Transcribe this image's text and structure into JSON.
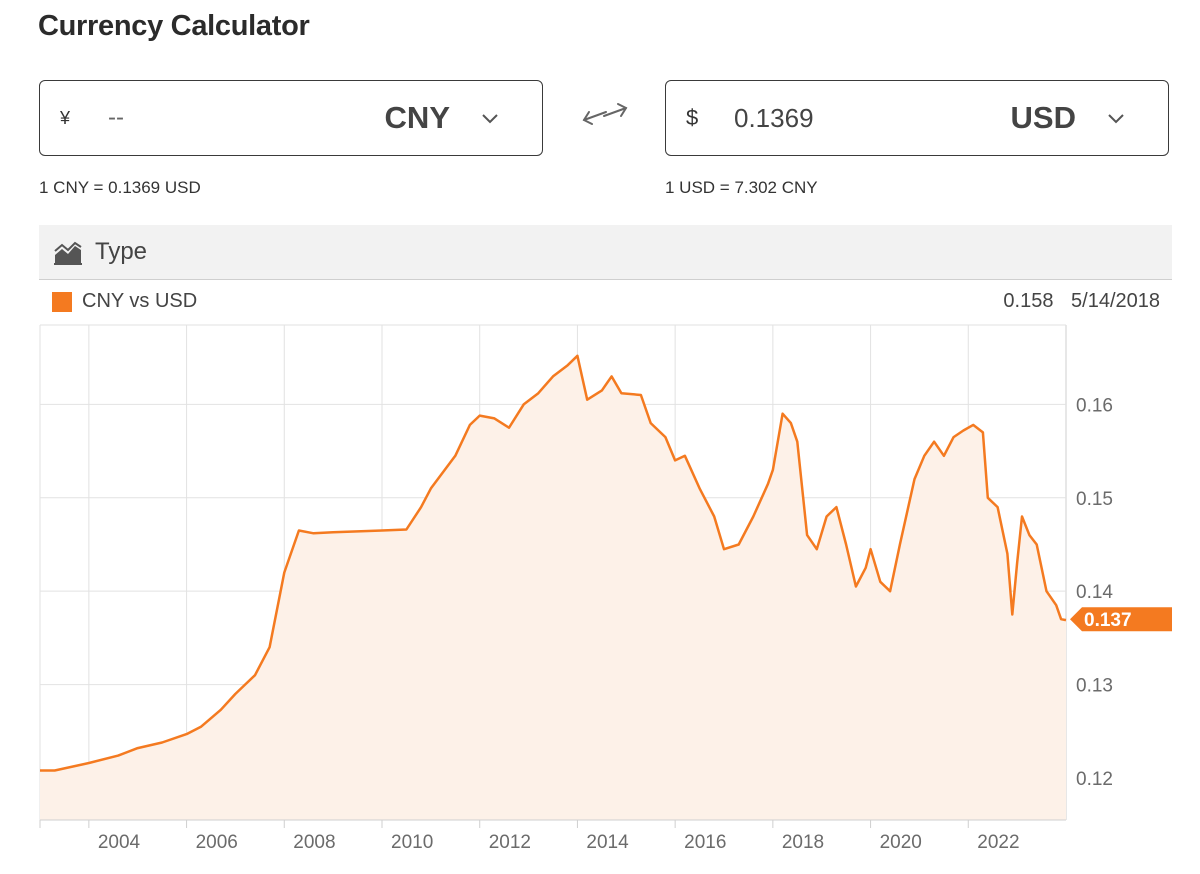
{
  "header": {
    "title": "Currency Calculator"
  },
  "converter": {
    "from": {
      "symbol": "¥",
      "value": "--",
      "currency": "CNY"
    },
    "to": {
      "symbol": "$",
      "value": "0.1369",
      "currency": "USD"
    },
    "rate_from": "1 CNY = 0.1369 USD",
    "rate_to": "1 USD = 7.302 CNY"
  },
  "toolbar": {
    "type_label": "Type"
  },
  "colors": {
    "accent": "#f47a20",
    "fill": "#fdf1e8",
    "grid": "#e2e2e2"
  },
  "icons": {
    "swap": "swap-arrows-icon",
    "chevron": "chevron-down-icon",
    "type": "area-chart-icon"
  },
  "chart_data": {
    "type": "area",
    "series": [
      {
        "name": "CNY vs USD",
        "points": [
          [
            2003.0,
            0.1208
          ],
          [
            2003.3,
            0.1208
          ],
          [
            2004.0,
            0.1216
          ],
          [
            2004.6,
            0.1224
          ],
          [
            2005.0,
            0.1232
          ],
          [
            2005.5,
            0.1238
          ],
          [
            2006.0,
            0.1247
          ],
          [
            2006.3,
            0.1255
          ],
          [
            2006.7,
            0.1273
          ],
          [
            2007.0,
            0.129
          ],
          [
            2007.4,
            0.131
          ],
          [
            2007.7,
            0.134
          ],
          [
            2008.0,
            0.142
          ],
          [
            2008.3,
            0.1465
          ],
          [
            2008.6,
            0.1462
          ],
          [
            2009.0,
            0.1463
          ],
          [
            2009.5,
            0.1464
          ],
          [
            2010.0,
            0.1465
          ],
          [
            2010.5,
            0.1466
          ],
          [
            2010.8,
            0.149
          ],
          [
            2011.0,
            0.151
          ],
          [
            2011.5,
            0.1545
          ],
          [
            2011.8,
            0.1578
          ],
          [
            2012.0,
            0.1588
          ],
          [
            2012.3,
            0.1585
          ],
          [
            2012.6,
            0.1575
          ],
          [
            2012.9,
            0.16
          ],
          [
            2013.2,
            0.1612
          ],
          [
            2013.5,
            0.163
          ],
          [
            2013.8,
            0.1642
          ],
          [
            2014.0,
            0.1652
          ],
          [
            2014.2,
            0.1605
          ],
          [
            2014.5,
            0.1615
          ],
          [
            2014.7,
            0.163
          ],
          [
            2014.9,
            0.1612
          ],
          [
            2015.3,
            0.161
          ],
          [
            2015.5,
            0.158
          ],
          [
            2015.8,
            0.1565
          ],
          [
            2016.0,
            0.154
          ],
          [
            2016.2,
            0.1545
          ],
          [
            2016.5,
            0.151
          ],
          [
            2016.8,
            0.148
          ],
          [
            2017.0,
            0.1445
          ],
          [
            2017.3,
            0.145
          ],
          [
            2017.6,
            0.148
          ],
          [
            2017.9,
            0.1515
          ],
          [
            2018.0,
            0.153
          ],
          [
            2018.2,
            0.159
          ],
          [
            2018.37,
            0.158
          ],
          [
            2018.5,
            0.156
          ],
          [
            2018.7,
            0.146
          ],
          [
            2018.9,
            0.1445
          ],
          [
            2019.1,
            0.148
          ],
          [
            2019.3,
            0.149
          ],
          [
            2019.5,
            0.145
          ],
          [
            2019.7,
            0.1405
          ],
          [
            2019.9,
            0.1425
          ],
          [
            2020.0,
            0.1445
          ],
          [
            2020.2,
            0.141
          ],
          [
            2020.4,
            0.14
          ],
          [
            2020.6,
            0.145
          ],
          [
            2020.9,
            0.152
          ],
          [
            2021.1,
            0.1545
          ],
          [
            2021.3,
            0.156
          ],
          [
            2021.5,
            0.1545
          ],
          [
            2021.7,
            0.1565
          ],
          [
            2021.9,
            0.1572
          ],
          [
            2022.1,
            0.1578
          ],
          [
            2022.3,
            0.157
          ],
          [
            2022.4,
            0.15
          ],
          [
            2022.6,
            0.149
          ],
          [
            2022.8,
            0.144
          ],
          [
            2022.9,
            0.1375
          ],
          [
            2023.0,
            0.143
          ],
          [
            2023.1,
            0.148
          ],
          [
            2023.25,
            0.146
          ],
          [
            2023.4,
            0.145
          ],
          [
            2023.6,
            0.14
          ],
          [
            2023.8,
            0.1385
          ],
          [
            2023.9,
            0.137
          ],
          [
            2024.0,
            0.1369
          ]
        ]
      }
    ],
    "x_ticks": [
      "2004",
      "2006",
      "2008",
      "2010",
      "2012",
      "2014",
      "2016",
      "2018",
      "2020",
      "2022"
    ],
    "y_ticks": [
      "0.12",
      "0.13",
      "0.14",
      "0.15",
      "0.16"
    ],
    "xlim": [
      2003.0,
      2024.0
    ],
    "ylim": [
      0.1155,
      0.1685
    ],
    "current_value": "0.137",
    "hover": {
      "value": "0.158",
      "date": "5/14/2018"
    },
    "legend_placement": "top-left",
    "grid": true
  }
}
